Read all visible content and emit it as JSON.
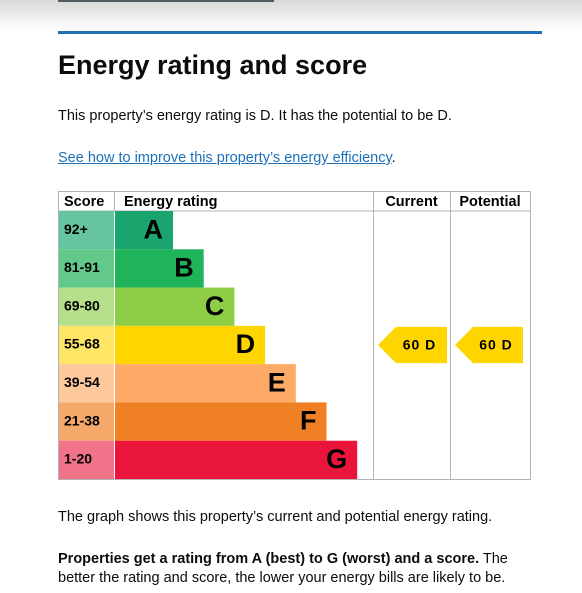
{
  "header": {
    "title": "Energy rating and score"
  },
  "intro": "This property’s energy rating is D. It has the potential to be D.",
  "link": {
    "text": "See how to improve this property’s energy efficiency",
    "after": "."
  },
  "graph": {
    "columns": [
      "Score",
      "Energy rating",
      "Current",
      "Potential"
    ],
    "bands": [
      {
        "score": "92+",
        "letter": "A",
        "color": "#1aa56f",
        "light": "#66c5a0"
      },
      {
        "score": "81-91",
        "letter": "B",
        "color": "#1fb35a",
        "light": "#63c98a"
      },
      {
        "score": "69-80",
        "letter": "C",
        "color": "#8dce46",
        "light": "#b5df8a"
      },
      {
        "score": "55-68",
        "letter": "D",
        "color": "#ffd500",
        "light": "#ffe566"
      },
      {
        "score": "39-54",
        "letter": "E",
        "color": "#fcaa65",
        "light": "#fdc89c"
      },
      {
        "score": "21-38",
        "letter": "F",
        "color": "#ef8023",
        "light": "#f4a86a"
      },
      {
        "score": "1-20",
        "letter": "G",
        "color": "#e9153b",
        "light": "#f17389"
      }
    ],
    "current": "60 D",
    "potential": "60 D"
  },
  "footer": {
    "graph_note": "The graph shows this property’s current and potential energy rating.",
    "bold": "Properties get a rating from A (best) to G (worst) and a score.",
    "rest": "The better the rating and score, the lower your energy bills are likely to be."
  }
}
